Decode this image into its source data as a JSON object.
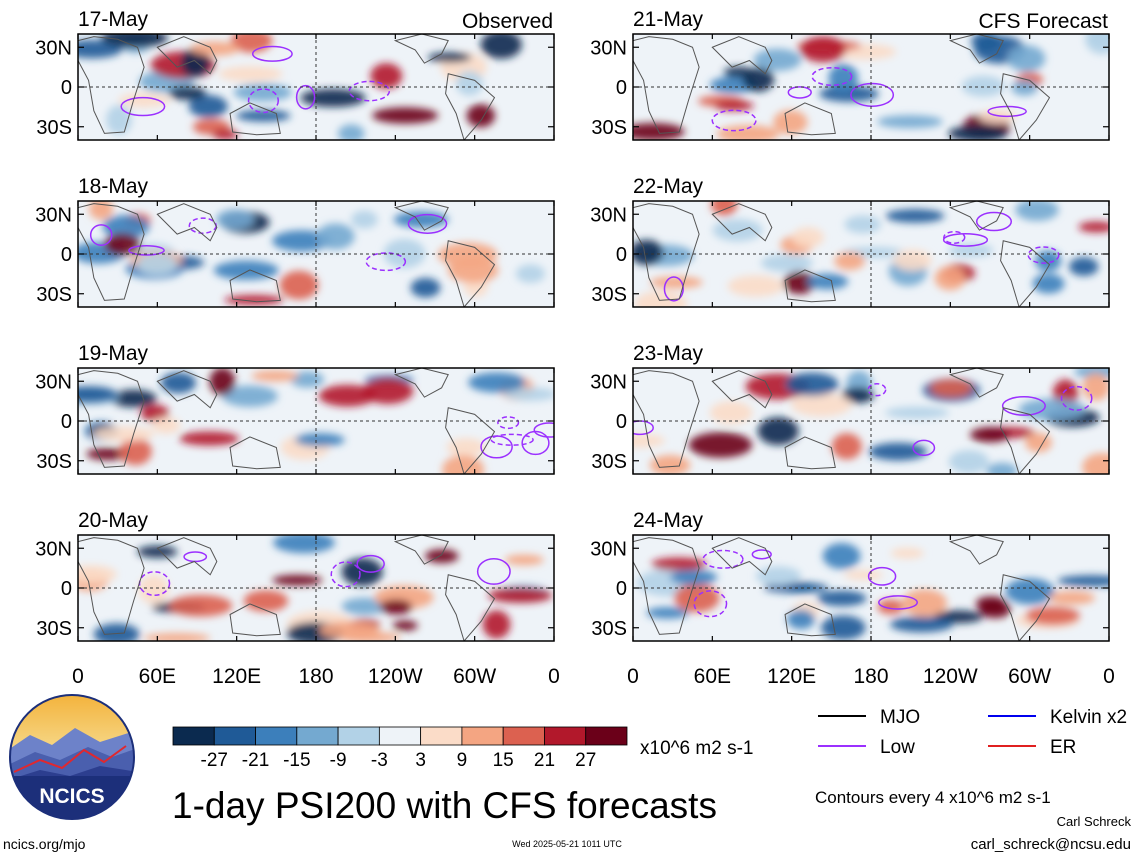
{
  "title": "1-day PSI200 with CFS forecasts",
  "observed_label": "Observed",
  "forecast_label": "CFS Forecast",
  "colorbar": {
    "unit": "x10^6 m2 s-1",
    "ticks": [
      "-27",
      "-21",
      "-15",
      "-9",
      "-3",
      "3",
      "9",
      "15",
      "21",
      "27"
    ],
    "colors": [
      "#0b2a4f",
      "#1f5a97",
      "#3c7fbb",
      "#74a9d0",
      "#b2d2e7",
      "#eef3f8",
      "#fbdcc8",
      "#f4a582",
      "#dc6150",
      "#b2182b",
      "#6b0019"
    ]
  },
  "legend": {
    "items": [
      {
        "label": "MJO",
        "color": "#000000"
      },
      {
        "label": "Kelvin x2",
        "color": "#0000ee"
      },
      {
        "label": "Low",
        "color": "#9b30ff"
      },
      {
        "label": "ER",
        "color": "#e02020"
      }
    ],
    "contour_note": "Contours every 4 x10^6 m2 s-1"
  },
  "footer": {
    "left": "ncics.org/mjo",
    "center": "Wed 2025-05-21 1011 UTC",
    "author": "Carl Schreck",
    "email": "carl_schreck@ncsu.edu"
  },
  "logo_text": "NCICS",
  "chart_data": {
    "type": "heatmap",
    "panels": [
      {
        "date": "17-May",
        "column": "Observed"
      },
      {
        "date": "18-May",
        "column": "Observed"
      },
      {
        "date": "19-May",
        "column": "Observed"
      },
      {
        "date": "20-May",
        "column": "Observed"
      },
      {
        "date": "21-May",
        "column": "CFS Forecast"
      },
      {
        "date": "22-May",
        "column": "CFS Forecast"
      },
      {
        "date": "23-May",
        "column": "CFS Forecast"
      },
      {
        "date": "24-May",
        "column": "CFS Forecast"
      }
    ],
    "x_ticks": [
      "0",
      "60E",
      "120E",
      "180",
      "120W",
      "60W",
      "0"
    ],
    "y_ticks": [
      "30N",
      "0",
      "30S"
    ],
    "xlim_lon": [
      0,
      360
    ],
    "ylim_lat": [
      -40,
      40
    ],
    "contour_levels": [
      -27,
      -21,
      -15,
      -9,
      -3,
      3,
      9,
      15,
      21,
      27
    ]
  }
}
